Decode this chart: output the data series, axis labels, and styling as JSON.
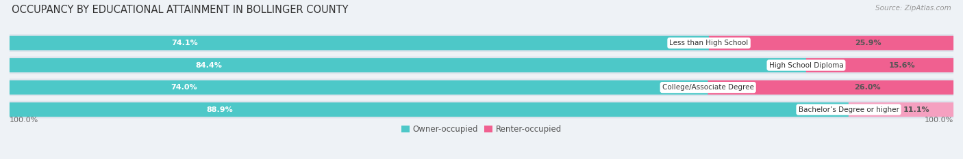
{
  "title": "OCCUPANCY BY EDUCATIONAL ATTAINMENT IN BOLLINGER COUNTY",
  "source": "Source: ZipAtlas.com",
  "categories": [
    "Less than High School",
    "High School Diploma",
    "College/Associate Degree",
    "Bachelor’s Degree or higher"
  ],
  "owner_pct": [
    74.1,
    84.4,
    74.0,
    88.9
  ],
  "renter_pct": [
    25.9,
    15.6,
    26.0,
    11.1
  ],
  "owner_color": "#4dc8c8",
  "renter_colors": [
    "#f06090",
    "#f06090",
    "#f06090",
    "#f5a0c0"
  ],
  "bg_color": "#eef2f6",
  "row_bg_color": "#dde4ec",
  "title_fontsize": 10.5,
  "label_fontsize": 8,
  "legend_fontsize": 8.5,
  "axis_label_fontsize": 8,
  "bar_height": 0.62,
  "total_width": 100.0,
  "x_left_label": "100.0%",
  "x_right_label": "100.0%"
}
